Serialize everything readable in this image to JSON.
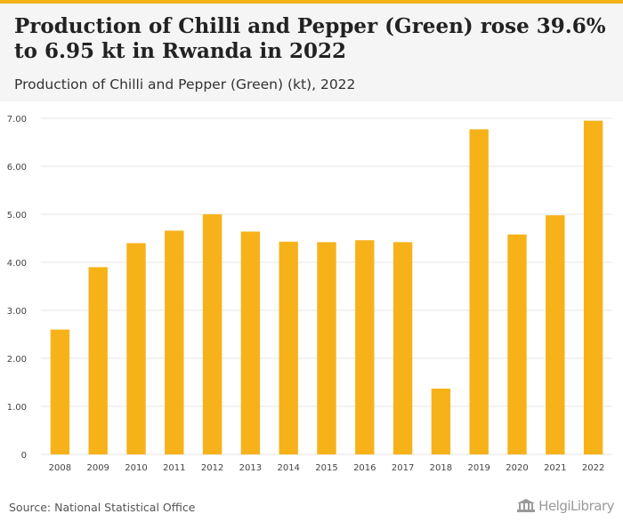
{
  "header": {
    "title": "Production of Chilli and Pepper (Green) rose 39.6% to 6.95 kt in Rwanda in 2022",
    "subtitle": "Production of Chilli and Pepper (Green) (kt), 2022"
  },
  "footer": {
    "source": "Source: National Statistical Office",
    "logo_text": "HelgiLibrary"
  },
  "colors": {
    "bar": "#f7b21a",
    "header_background": "#f5f5f5",
    "grid": "#e6e6e6"
  },
  "chart_data": {
    "type": "bar",
    "categories": [
      "2008",
      "2009",
      "2010",
      "2011",
      "2012",
      "2013",
      "2014",
      "2015",
      "2016",
      "2017",
      "2018",
      "2019",
      "2020",
      "2021",
      "2022"
    ],
    "values": [
      2.6,
      3.9,
      4.4,
      4.66,
      5.0,
      4.64,
      4.43,
      4.42,
      4.46,
      4.42,
      1.37,
      6.77,
      4.58,
      4.98,
      6.95
    ],
    "ylim": [
      0,
      7
    ],
    "yticks": [
      0,
      1,
      2,
      3,
      4,
      5,
      6,
      7
    ],
    "ytick_labels": [
      "0",
      "1.00",
      "2.00",
      "3.00",
      "4.00",
      "5.00",
      "6.00",
      "7.00"
    ],
    "grid": true,
    "legend": false
  }
}
